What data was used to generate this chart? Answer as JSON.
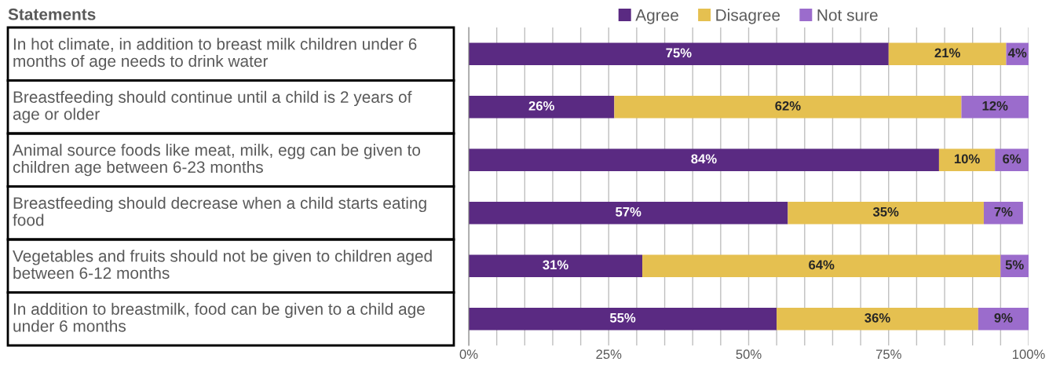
{
  "chart_data": {
    "type": "bar",
    "orientation": "horizontal",
    "stacked": true,
    "ylabel": "Statements",
    "categories": [
      "In hot climate, in addition to breast milk children under 6 months of age needs to drink water",
      "Breastfeeding should continue until a child is 2 years of age or older",
      "Animal source foods like meat, milk, egg can be given to children age between 6-23 months",
      "Breastfeeding should decrease when a child starts eating food",
      "Vegetables and fruits should not be given to children aged between 6-12 months",
      "In addition to breastmilk, food can be given to a child age under 6 months"
    ],
    "series": [
      {
        "name": "Agree",
        "color": "#5a2a82",
        "values": [
          75,
          26,
          84,
          57,
          31,
          55
        ]
      },
      {
        "name": "Disagree",
        "color": "#e5c050",
        "values": [
          21,
          62,
          10,
          35,
          64,
          36
        ]
      },
      {
        "name": "Not sure",
        "color": "#9b6ccc",
        "values": [
          4,
          12,
          6,
          7,
          5,
          9
        ]
      }
    ],
    "value_labels": [
      [
        "75%",
        "26%",
        "84%",
        "57%",
        "31%",
        "55%"
      ],
      [
        "21%",
        "62%",
        "10%",
        "35%",
        "64%",
        "36%"
      ],
      [
        "4%",
        "12%",
        "6%",
        "7%",
        "5%",
        "9%"
      ]
    ],
    "xlim": [
      0,
      100
    ],
    "xticks": [
      {
        "value": 0,
        "label": "0%"
      },
      {
        "value": 5,
        "label": null
      },
      {
        "value": 10,
        "label": null
      },
      {
        "value": 15,
        "label": null
      },
      {
        "value": 20,
        "label": null
      },
      {
        "value": 25,
        "label": "25%"
      },
      {
        "value": 30,
        "label": null
      },
      {
        "value": 35,
        "label": null
      },
      {
        "value": 40,
        "label": null
      },
      {
        "value": 45,
        "label": null
      },
      {
        "value": 50,
        "label": "50%"
      },
      {
        "value": 55,
        "label": null
      },
      {
        "value": 60,
        "label": null
      },
      {
        "value": 65,
        "label": null
      },
      {
        "value": 70,
        "label": null
      },
      {
        "value": 75,
        "label": "75%"
      },
      {
        "value": 80,
        "label": null
      },
      {
        "value": 85,
        "label": null
      },
      {
        "value": 90,
        "label": null
      },
      {
        "value": 95,
        "label": null
      },
      {
        "value": 100,
        "label": "100%"
      }
    ],
    "grid": "x",
    "legend": "top"
  }
}
